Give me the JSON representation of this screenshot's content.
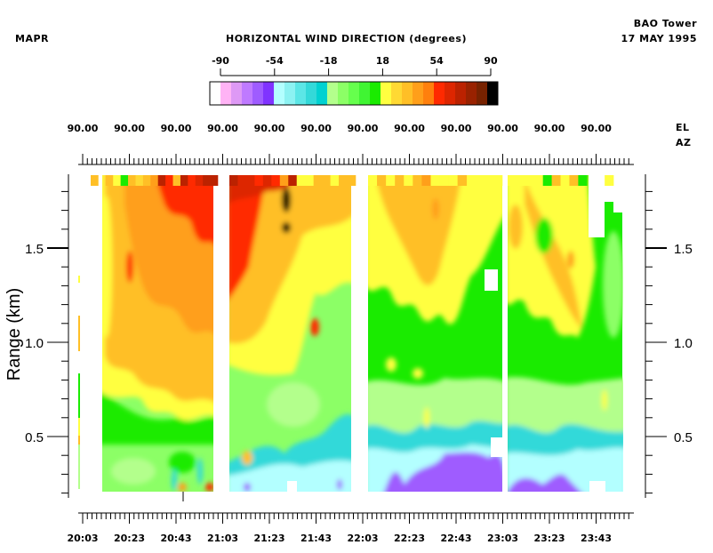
{
  "header": {
    "left_label": "MAPR",
    "title": "HORIZONTAL WIND DIRECTION (degrees)",
    "site": "BAO Tower",
    "date": "17 MAY 1995"
  },
  "colorbar": {
    "tick_labels": [
      "-90",
      "-54",
      "-18",
      "18",
      "54",
      "90"
    ],
    "tick_values": [
      -90,
      -54,
      -18,
      18,
      54,
      90
    ],
    "colors": [
      "#ffffff",
      "#ffb3f5",
      "#de99f5",
      "#bf7aff",
      "#9f5cff",
      "#8033ff",
      "#b3ffff",
      "#8cf2f2",
      "#5ce6e6",
      "#33d9d9",
      "#00d1d1",
      "#b3ff8c",
      "#8cff66",
      "#66ff4d",
      "#40f533",
      "#1aeb00",
      "#ffff40",
      "#ffd933",
      "#ffbf26",
      "#ff9f1a",
      "#ff800d",
      "#ff2a00",
      "#dd2600",
      "#bb2200",
      "#992200",
      "#772200",
      "#000000"
    ]
  },
  "chart_data": {
    "type": "heatmap",
    "title": "HORIZONTAL WIND DIRECTION (degrees)",
    "xlabel": "",
    "ylabel": "Range (km)",
    "ylim": [
      0.18,
      1.9
    ],
    "y_ticks": [
      0.5,
      1.0,
      1.5
    ],
    "y_tick_labels": [
      "0.5",
      "1.0",
      "1.5"
    ],
    "y_minor_step": 0.1,
    "x_tick_labels": [
      "20:03",
      "20:23",
      "20:43",
      "21:03",
      "21:23",
      "21:43",
      "22:03",
      "22:23",
      "22:43",
      "23:03",
      "23:23",
      "23:43"
    ],
    "top_axis": {
      "row1_label": "EL",
      "row2_label": "AZ",
      "el_values": [
        "90.00",
        "90.00",
        "90.00",
        "90.00",
        "90.00",
        "90.00",
        "90.00",
        "90.00",
        "90.00",
        "90.00",
        "90.00",
        "90.00"
      ]
    },
    "color_scale": {
      "min": -90,
      "max": 90
    },
    "description_of_field": "Four scan blocks; upper ranges ~18 to 60 degrees (yellow-orange-red), lower ranges ~-54 to 18 degrees (green to cyan to purple)"
  }
}
